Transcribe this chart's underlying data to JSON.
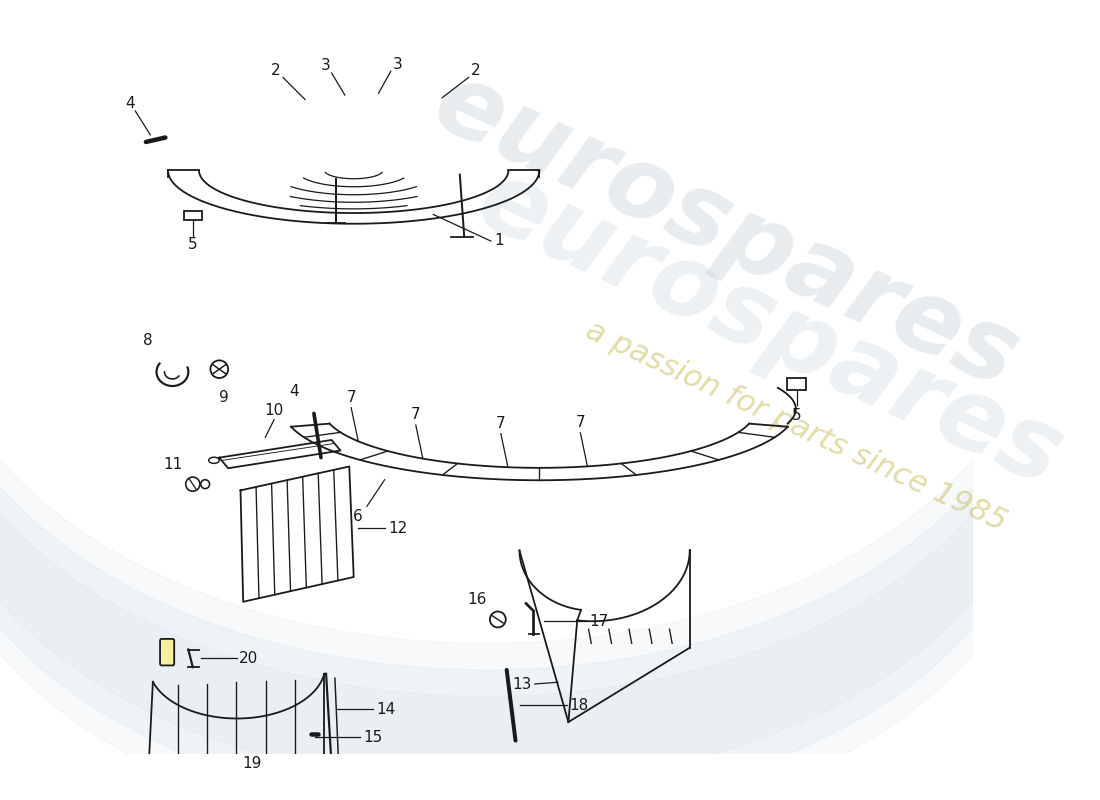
{
  "bg_color": "#ffffff",
  "lc": "#1a1a1a",
  "lw": 1.3,
  "watermark1": "eurospares",
  "watermark2": "a passion for parts since 1985",
  "figsize": [
    11.0,
    8.0
  ],
  "dpi": 100
}
